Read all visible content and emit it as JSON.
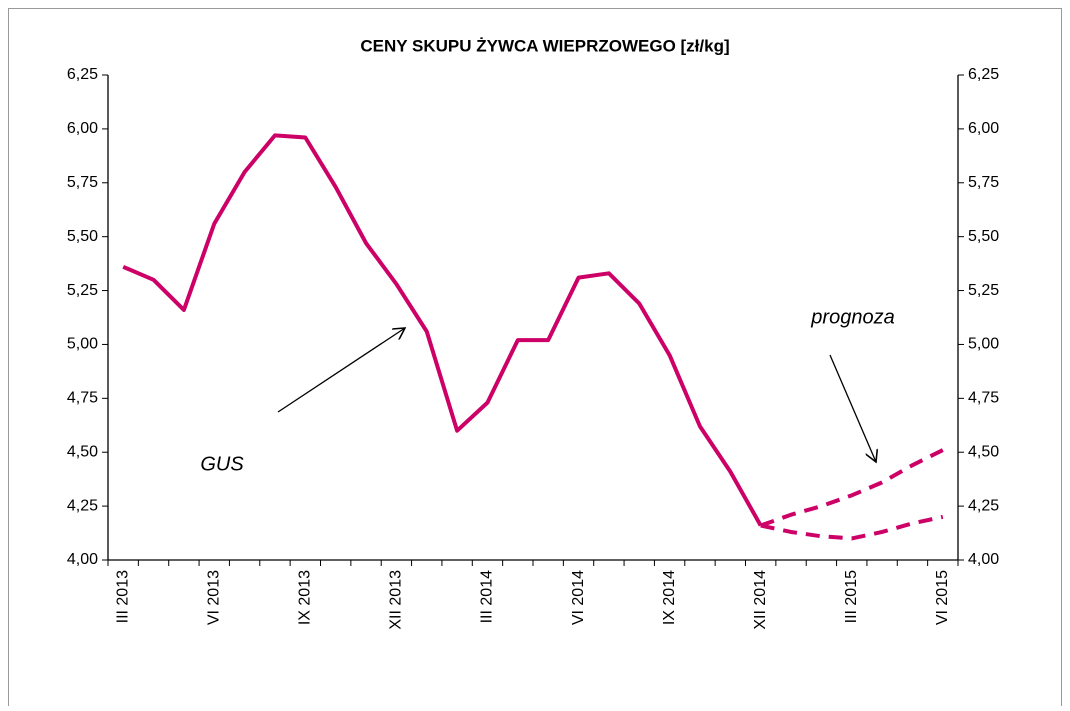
{
  "chart_data": {
    "type": "line",
    "title": "CENY SKUPU ŻYWCA WIEPRZOWEGO [zł/kg]",
    "categories": [
      "III 2013",
      null,
      null,
      "VI 2013",
      null,
      null,
      "IX 2013",
      null,
      null,
      "XII 2013",
      null,
      null,
      "III 2014",
      null,
      null,
      "VI 2014",
      null,
      null,
      "IX 2014",
      null,
      null,
      "XII 2014",
      null,
      null,
      "III 2015",
      null,
      null,
      "VI 2015"
    ],
    "series": [
      {
        "color": "#cc0066",
        "dashed": false,
        "values": [
          5.36,
          5.3,
          5.16,
          5.56,
          5.8,
          5.97,
          5.96,
          5.73,
          5.47,
          5.28,
          5.06,
          4.6,
          4.73,
          5.02,
          5.02,
          5.31,
          5.33,
          5.19,
          4.95,
          4.62,
          4.41,
          4.16,
          null,
          null,
          null,
          null,
          null,
          null
        ]
      },
      {
        "color": "#cc0066",
        "dashed": true,
        "values": [
          null,
          null,
          null,
          null,
          null,
          null,
          null,
          null,
          null,
          null,
          null,
          null,
          null,
          null,
          null,
          null,
          null,
          null,
          null,
          null,
          null,
          4.16,
          4.21,
          4.25,
          4.3,
          4.36,
          4.44,
          4.51
        ]
      },
      {
        "color": "#cc0066",
        "dashed": true,
        "values": [
          null,
          null,
          null,
          null,
          null,
          null,
          null,
          null,
          null,
          null,
          null,
          null,
          null,
          null,
          null,
          null,
          null,
          null,
          null,
          null,
          null,
          4.16,
          4.13,
          4.11,
          4.1,
          4.13,
          4.17,
          4.2
        ]
      }
    ],
    "ylim": [
      4.0,
      6.25
    ],
    "yticks": [
      {
        "value": 4.0,
        "label": "4,00"
      },
      {
        "value": 4.25,
        "label": "4,25"
      },
      {
        "value": 4.5,
        "label": "4,50"
      },
      {
        "value": 4.75,
        "label": "4,75"
      },
      {
        "value": 5.0,
        "label": "5,00"
      },
      {
        "value": 5.25,
        "label": "5,25"
      },
      {
        "value": 5.5,
        "label": "5,50"
      },
      {
        "value": 5.75,
        "label": "5,75"
      },
      {
        "value": 6.0,
        "label": "6,00"
      },
      {
        "value": 6.25,
        "label": "6,25"
      }
    ],
    "y2lim": [
      4.0,
      6.25
    ],
    "y2ticks": [
      {
        "value": 4.0,
        "label": "4,00"
      },
      {
        "value": 4.25,
        "label": "4,25"
      },
      {
        "value": 4.5,
        "label": "4,50"
      },
      {
        "value": 4.75,
        "label": "4,75"
      },
      {
        "value": 5.0,
        "label": "5,00"
      },
      {
        "value": 5.25,
        "label": "5,25"
      },
      {
        "value": 5.5,
        "label": "5,50"
      },
      {
        "value": 5.75,
        "label": "5,75"
      },
      {
        "value": 6.0,
        "label": "6,00"
      },
      {
        "value": 6.25,
        "label": "6,25"
      }
    ],
    "annotations": [
      "GUS",
      "prognoza"
    ],
    "grid": false
  }
}
